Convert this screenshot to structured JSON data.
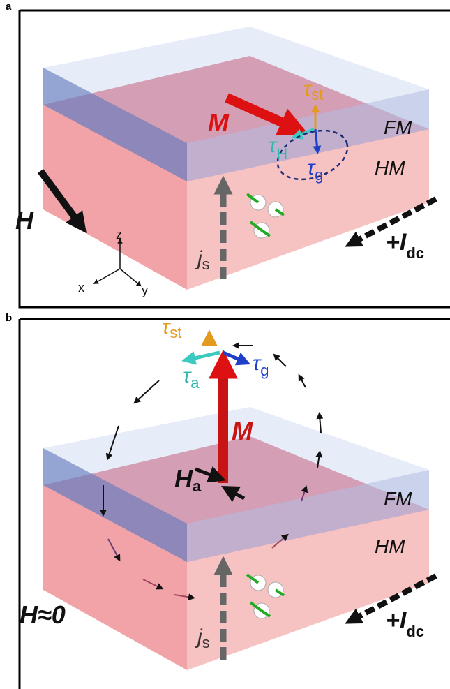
{
  "panel_a": {
    "label": "a",
    "magnetization": "M",
    "torque_st": {
      "symbol": "τ",
      "sub": "st"
    },
    "torque_h": {
      "symbol": "τ",
      "sub": "H"
    },
    "torque_g": {
      "symbol": "τ",
      "sub": "g"
    },
    "layer_fm": "FM",
    "layer_hm": "HM",
    "field": "H",
    "axis_z": "z",
    "axis_x": "x",
    "axis_y": "y",
    "spin_current": {
      "symbol": "j",
      "sub": "s"
    },
    "current": {
      "symbol": "+I",
      "sub": "dc"
    }
  },
  "panel_b": {
    "label": "b",
    "torque_st": {
      "symbol": "τ",
      "sub": "st"
    },
    "torque_a": {
      "symbol": "τ",
      "sub": "a"
    },
    "torque_g": {
      "symbol": "τ",
      "sub": "g"
    },
    "magnetization": "M",
    "anisotropy_field": {
      "symbol": "H",
      "sub": "a"
    },
    "layer_fm": "FM",
    "layer_hm": "HM",
    "field": "H≈0",
    "spin_current": {
      "symbol": "j",
      "sub": "s"
    },
    "current": {
      "symbol": "+I",
      "sub": "dc"
    }
  }
}
